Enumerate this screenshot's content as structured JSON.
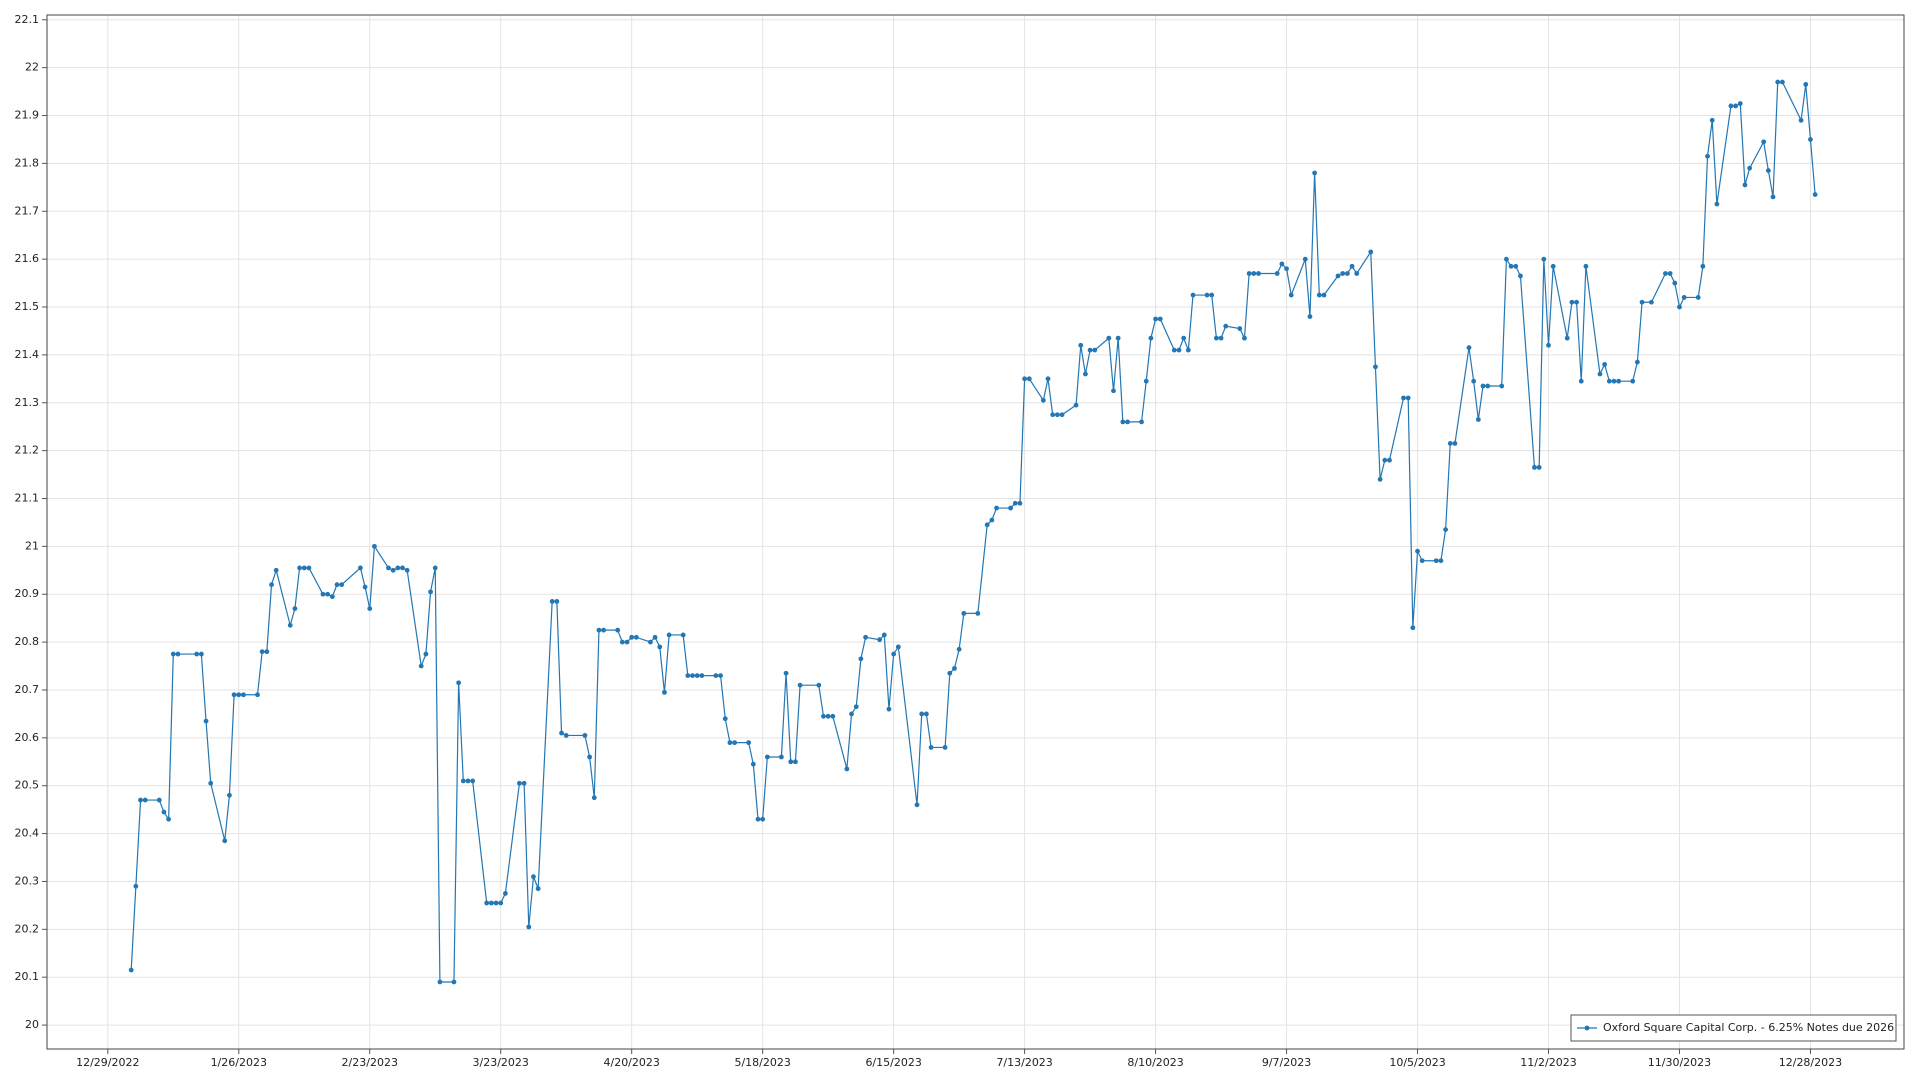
{
  "chart_data": {
    "type": "line",
    "x": [
      "1/3/2023",
      "1/4/2023",
      "1/5/2023",
      "1/6/2023",
      "1/9/2023",
      "1/10/2023",
      "1/11/2023",
      "1/12/2023",
      "1/13/2023",
      "1/17/2023",
      "1/18/2023",
      "1/19/2023",
      "1/20/2023",
      "1/23/2023",
      "1/24/2023",
      "1/25/2023",
      "1/26/2023",
      "1/27/2023",
      "1/30/2023",
      "1/31/2023",
      "2/1/2023",
      "2/2/2023",
      "2/3/2023",
      "2/6/2023",
      "2/7/2023",
      "2/8/2023",
      "2/9/2023",
      "2/10/2023",
      "2/13/2023",
      "2/14/2023",
      "2/15/2023",
      "2/16/2023",
      "2/17/2023",
      "2/21/2023",
      "2/22/2023",
      "2/23/2023",
      "2/24/2023",
      "2/27/2023",
      "2/28/2023",
      "3/1/2023",
      "3/2/2023",
      "3/3/2023",
      "3/6/2023",
      "3/7/2023",
      "3/8/2023",
      "3/9/2023",
      "3/10/2023",
      "3/13/2023",
      "3/14/2023",
      "3/15/2023",
      "3/16/2023",
      "3/17/2023",
      "3/20/2023",
      "3/21/2023",
      "3/22/2023",
      "3/23/2023",
      "3/24/2023",
      "3/27/2023",
      "3/28/2023",
      "3/29/2023",
      "3/30/2023",
      "3/31/2023",
      "4/3/2023",
      "4/4/2023",
      "4/5/2023",
      "4/6/2023",
      "4/10/2023",
      "4/11/2023",
      "4/12/2023",
      "4/13/2023",
      "4/14/2023",
      "4/17/2023",
      "4/18/2023",
      "4/19/2023",
      "4/20/2023",
      "4/21/2023",
      "4/24/2023",
      "4/25/2023",
      "4/26/2023",
      "4/27/2023",
      "4/28/2023",
      "5/1/2023",
      "5/2/2023",
      "5/3/2023",
      "5/4/2023",
      "5/5/2023",
      "5/8/2023",
      "5/9/2023",
      "5/10/2023",
      "5/11/2023",
      "5/12/2023",
      "5/15/2023",
      "5/16/2023",
      "5/17/2023",
      "5/18/2023",
      "5/19/2023",
      "5/22/2023",
      "5/23/2023",
      "5/24/2023",
      "5/25/2023",
      "5/26/2023",
      "5/30/2023",
      "5/31/2023",
      "6/1/2023",
      "6/2/2023",
      "6/5/2023",
      "6/6/2023",
      "6/7/2023",
      "6/8/2023",
      "6/9/2023",
      "6/12/2023",
      "6/13/2023",
      "6/14/2023",
      "6/15/2023",
      "6/16/2023",
      "6/20/2023",
      "6/21/2023",
      "6/22/2023",
      "6/23/2023",
      "6/26/2023",
      "6/27/2023",
      "6/28/2023",
      "6/29/2023",
      "6/30/2023",
      "7/3/2023",
      "7/5/2023",
      "7/6/2023",
      "7/7/2023",
      "7/10/2023",
      "7/11/2023",
      "7/12/2023",
      "7/13/2023",
      "7/14/2023",
      "7/17/2023",
      "7/18/2023",
      "7/19/2023",
      "7/20/2023",
      "7/21/2023",
      "7/24/2023",
      "7/25/2023",
      "7/26/2023",
      "7/27/2023",
      "7/28/2023",
      "7/31/2023",
      "8/1/2023",
      "8/2/2023",
      "8/3/2023",
      "8/4/2023",
      "8/7/2023",
      "8/8/2023",
      "8/9/2023",
      "8/10/2023",
      "8/11/2023",
      "8/14/2023",
      "8/15/2023",
      "8/16/2023",
      "8/17/2023",
      "8/18/2023",
      "8/21/2023",
      "8/22/2023",
      "8/23/2023",
      "8/24/2023",
      "8/25/2023",
      "8/28/2023",
      "8/29/2023",
      "8/30/2023",
      "8/31/2023",
      "9/1/2023",
      "9/5/2023",
      "9/6/2023",
      "9/7/2023",
      "9/8/2023",
      "9/11/2023",
      "9/12/2023",
      "9/13/2023",
      "9/14/2023",
      "9/15/2023",
      "9/18/2023",
      "9/19/2023",
      "9/20/2023",
      "9/21/2023",
      "9/22/2023",
      "9/25/2023",
      "9/26/2023",
      "9/27/2023",
      "9/28/2023",
      "9/29/2023",
      "10/2/2023",
      "10/3/2023",
      "10/4/2023",
      "10/5/2023",
      "10/6/2023",
      "10/9/2023",
      "10/10/2023",
      "10/11/2023",
      "10/12/2023",
      "10/13/2023",
      "10/16/2023",
      "10/17/2023",
      "10/18/2023",
      "10/19/2023",
      "10/20/2023",
      "10/23/2023",
      "10/24/2023",
      "10/25/2023",
      "10/26/2023",
      "10/27/2023",
      "10/30/2023",
      "10/31/2023",
      "11/1/2023",
      "11/2/2023",
      "11/3/2023",
      "11/6/2023",
      "11/7/2023",
      "11/8/2023",
      "11/9/2023",
      "11/10/2023",
      "11/13/2023",
      "11/14/2023",
      "11/15/2023",
      "11/16/2023",
      "11/17/2023",
      "11/20/2023",
      "11/21/2023",
      "11/22/2023",
      "11/24/2023",
      "11/27/2023",
      "11/28/2023",
      "11/29/2023",
      "11/30/2023",
      "12/1/2023",
      "12/4/2023",
      "12/5/2023",
      "12/6/2023",
      "12/7/2023",
      "12/8/2023",
      "12/11/2023",
      "12/12/2023",
      "12/13/2023",
      "12/14/2023",
      "12/15/2023",
      "12/18/2023",
      "12/19/2023",
      "12/20/2023",
      "12/21/2023",
      "12/22/2023",
      "12/26/2023",
      "12/27/2023",
      "12/28/2023",
      "12/29/2023"
    ],
    "series": [
      {
        "name": "Oxford Square Capital Corp. - 6.25% Notes due 2026",
        "color": "#2377b4",
        "values": [
          20.115,
          20.29,
          20.47,
          20.47,
          20.47,
          20.445,
          20.43,
          20.775,
          20.775,
          20.775,
          20.775,
          20.635,
          20.505,
          20.385,
          20.48,
          20.69,
          20.69,
          20.69,
          20.69,
          20.78,
          20.78,
          20.92,
          20.95,
          20.835,
          20.87,
          20.955,
          20.955,
          20.955,
          20.9,
          20.9,
          20.895,
          20.92,
          20.92,
          20.955,
          20.915,
          20.87,
          21.0,
          20.955,
          20.95,
          20.955,
          20.955,
          20.95,
          20.75,
          20.775,
          20.905,
          20.955,
          20.09,
          20.09,
          20.715,
          20.51,
          20.51,
          20.51,
          20.255,
          20.255,
          20.255,
          20.255,
          20.275,
          20.505,
          20.505,
          20.205,
          20.31,
          20.285,
          20.885,
          20.885,
          20.61,
          20.605,
          20.605,
          20.56,
          20.475,
          20.825,
          20.825,
          20.825,
          20.8,
          20.8,
          20.81,
          20.81,
          20.8,
          20.81,
          20.79,
          20.695,
          20.815,
          20.815,
          20.73,
          20.73,
          20.73,
          20.73,
          20.73,
          20.73,
          20.64,
          20.59,
          20.59,
          20.59,
          20.545,
          20.43,
          20.43,
          20.56,
          20.56,
          20.735,
          20.55,
          20.55,
          20.71,
          20.71,
          20.645,
          20.645,
          20.645,
          20.535,
          20.65,
          20.665,
          20.765,
          20.81,
          20.805,
          20.815,
          20.66,
          20.775,
          20.79,
          20.46,
          20.65,
          20.65,
          20.58,
          20.58,
          20.735,
          20.745,
          20.785,
          20.86,
          20.86,
          21.045,
          21.055,
          21.08,
          21.08,
          21.09,
          21.09,
          21.35,
          21.35,
          21.305,
          21.35,
          21.275,
          21.275,
          21.275,
          21.295,
          21.42,
          21.36,
          21.41,
          21.41,
          21.435,
          21.325,
          21.435,
          21.26,
          21.26,
          21.26,
          21.345,
          21.435,
          21.475,
          21.475,
          21.41,
          21.41,
          21.435,
          21.41,
          21.525,
          21.525,
          21.525,
          21.435,
          21.435,
          21.46,
          21.455,
          21.435,
          21.57,
          21.57,
          21.57,
          21.57,
          21.59,
          21.58,
          21.525,
          21.6,
          21.48,
          21.78,
          21.525,
          21.525,
          21.565,
          21.57,
          21.57,
          21.585,
          21.57,
          21.615,
          21.375,
          21.14,
          21.18,
          21.18,
          21.31,
          21.31,
          20.83,
          20.99,
          20.97,
          20.97,
          20.97,
          21.035,
          21.215,
          21.215,
          21.415,
          21.345,
          21.265,
          21.335,
          21.335,
          21.335,
          21.6,
          21.585,
          21.585,
          21.565,
          21.165,
          21.165,
          21.6,
          21.42,
          21.585,
          21.435,
          21.51,
          21.51,
          21.345,
          21.585,
          21.36,
          21.38,
          21.345,
          21.345,
          21.345,
          21.345,
          21.385,
          21.51,
          21.51,
          21.57,
          21.57,
          21.55,
          21.5,
          21.52,
          21.52,
          21.585,
          21.815,
          21.89,
          21.715,
          21.92,
          21.92,
          21.925,
          21.755,
          21.79,
          21.845,
          21.785,
          21.73,
          21.97,
          21.97,
          21.89,
          21.965,
          21.85,
          21.735
        ]
      }
    ],
    "xlim": [
      "12/16/2022",
      "1/17/2024"
    ],
    "xticks": [
      "12/29/2022",
      "1/26/2023",
      "2/23/2023",
      "3/23/2023",
      "4/20/2023",
      "5/18/2023",
      "6/15/2023",
      "7/13/2023",
      "8/10/2023",
      "9/7/2023",
      "10/5/2023",
      "11/2/2023",
      "11/30/2023",
      "12/28/2023"
    ],
    "ylim": [
      19.95,
      22.11
    ],
    "yticks": [
      20,
      20.1,
      20.2,
      20.3,
      20.4,
      20.5,
      20.6,
      20.7,
      20.8,
      20.9,
      21,
      21.1,
      21.2,
      21.3,
      21.4,
      21.5,
      21.6,
      21.7,
      21.8,
      21.9,
      22,
      22.1
    ],
    "grid": true,
    "legend": "lower right"
  }
}
